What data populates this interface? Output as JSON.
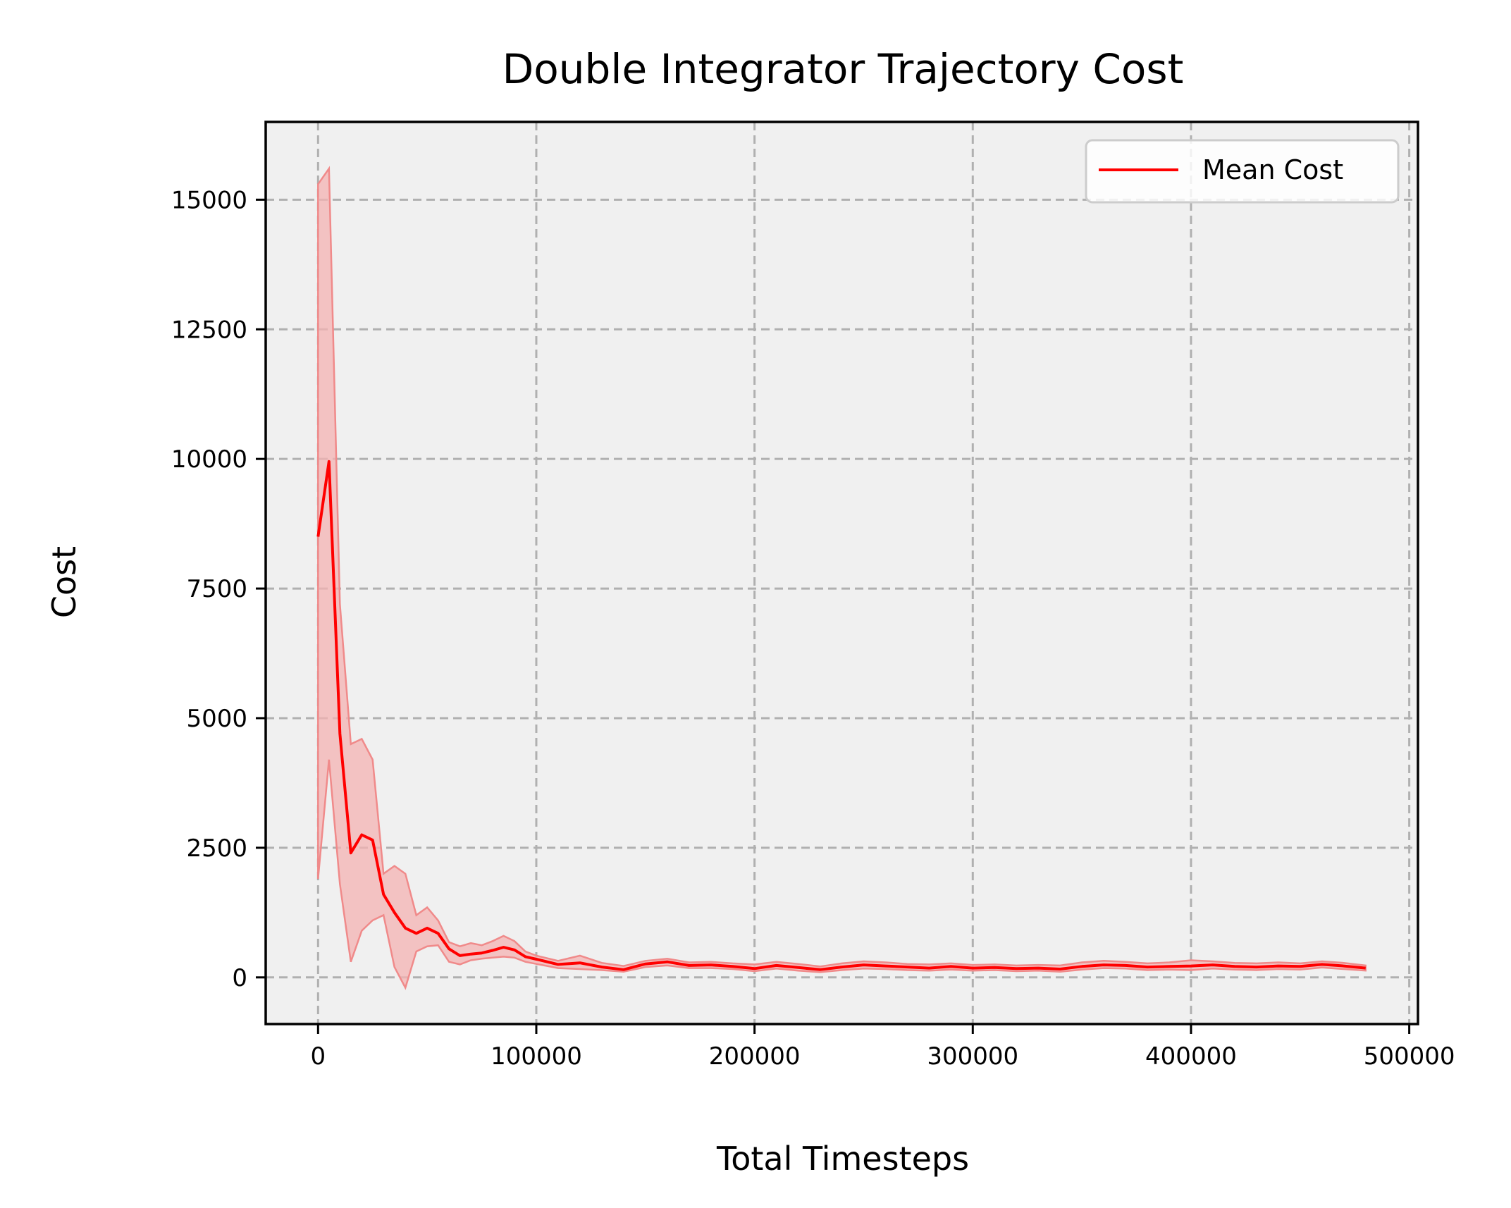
{
  "chart_data": {
    "type": "line",
    "title": "Double Integrator Trajectory Cost",
    "xlabel": "Total Timesteps",
    "ylabel": "Cost",
    "xlim": [
      -24000,
      504000
    ],
    "ylim": [
      -900,
      16500
    ],
    "xticks": [
      0,
      100000,
      200000,
      300000,
      400000,
      500000
    ],
    "xtick_labels": [
      "0",
      "100000",
      "200000",
      "300000",
      "400000",
      "500000"
    ],
    "yticks": [
      0,
      2500,
      5000,
      7500,
      10000,
      12500,
      15000
    ],
    "ytick_labels": [
      "0",
      "2500",
      "5000",
      "7500",
      "10000",
      "12500",
      "15000"
    ],
    "grid": true,
    "legend_position": "upper right",
    "colors": {
      "line": "#ff0000",
      "band": "#f4b3b3",
      "plot_background": "#f0f0f0",
      "grid": "#b0b0b0"
    },
    "series": [
      {
        "name": "Mean Cost",
        "x": [
          0,
          5000,
          10000,
          15000,
          20000,
          25000,
          30000,
          35000,
          40000,
          45000,
          50000,
          55000,
          60000,
          65000,
          70000,
          75000,
          80000,
          85000,
          90000,
          95000,
          100000,
          110000,
          120000,
          130000,
          140000,
          150000,
          160000,
          170000,
          180000,
          190000,
          200000,
          210000,
          220000,
          230000,
          240000,
          250000,
          260000,
          270000,
          280000,
          290000,
          300000,
          310000,
          320000,
          330000,
          340000,
          350000,
          360000,
          370000,
          380000,
          390000,
          400000,
          410000,
          420000,
          430000,
          440000,
          450000,
          460000,
          470000,
          480000
        ],
        "y": [
          8500,
          9950,
          4700,
          2400,
          2750,
          2650,
          1600,
          1250,
          950,
          850,
          950,
          850,
          550,
          420,
          450,
          470,
          520,
          580,
          530,
          400,
          350,
          250,
          280,
          200,
          150,
          260,
          300,
          230,
          240,
          210,
          170,
          230,
          190,
          150,
          200,
          240,
          220,
          200,
          180,
          210,
          180,
          190,
          170,
          180,
          160,
          210,
          240,
          230,
          200,
          210,
          220,
          240,
          210,
          200,
          220,
          210,
          250,
          220,
          180
        ],
        "upper": [
          15300,
          15600,
          7200,
          4500,
          4600,
          4200,
          2000,
          2150,
          2000,
          1200,
          1350,
          1100,
          680,
          600,
          660,
          620,
          700,
          800,
          700,
          500,
          420,
          320,
          420,
          280,
          220,
          320,
          360,
          290,
          300,
          270,
          250,
          300,
          260,
          210,
          270,
          310,
          290,
          260,
          250,
          270,
          240,
          250,
          230,
          240,
          230,
          290,
          320,
          300,
          270,
          290,
          330,
          310,
          280,
          270,
          290,
          270,
          310,
          280,
          230
        ],
        "lower": [
          1900,
          4200,
          1800,
          300,
          900,
          1100,
          1200,
          200,
          -200,
          500,
          600,
          620,
          300,
          250,
          330,
          360,
          380,
          400,
          380,
          300,
          260,
          180,
          160,
          140,
          110,
          200,
          230,
          180,
          180,
          160,
          120,
          170,
          130,
          100,
          140,
          170,
          160,
          140,
          130,
          150,
          130,
          140,
          120,
          130,
          110,
          150,
          180,
          170,
          140,
          150,
          140,
          170,
          150,
          140,
          160,
          150,
          190,
          160,
          130
        ]
      }
    ]
  }
}
